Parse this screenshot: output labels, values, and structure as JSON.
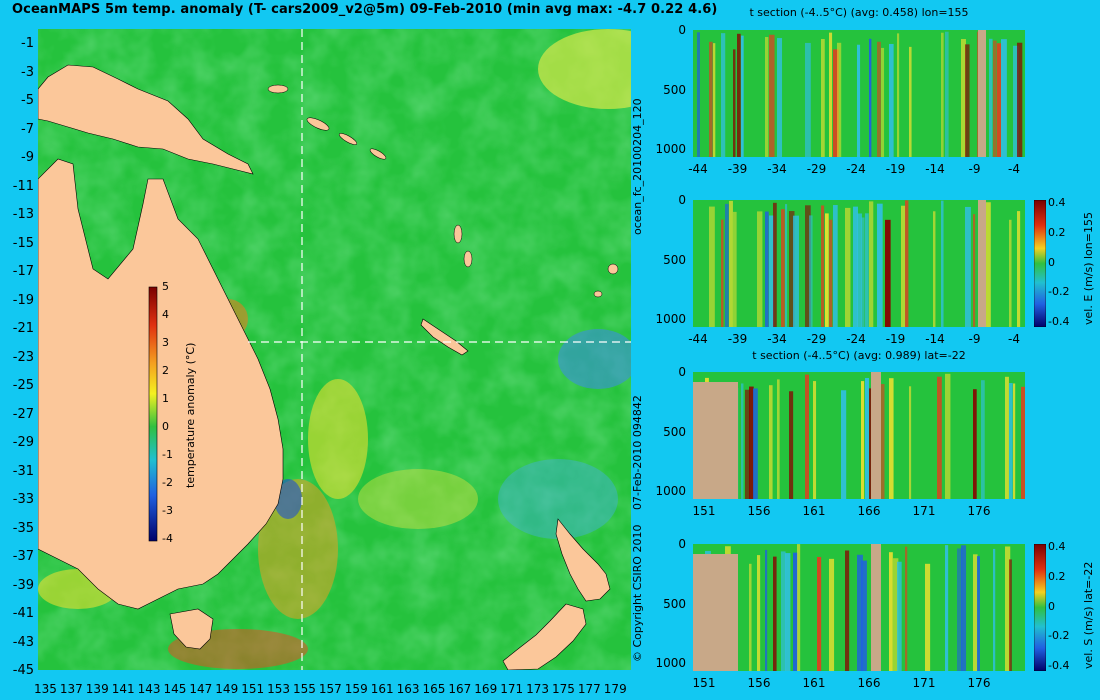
{
  "title": "OceanMAPS 5m temp. anomaly (T- cars2009_v2@5m) 09-Feb-2010 (min avg max: -4.7 0.22 4.6)",
  "map": {
    "y_ticks": [
      "-1",
      "-3",
      "-5",
      "-7",
      "-9",
      "-11",
      "-13",
      "-15",
      "-17",
      "-19",
      "-21",
      "-23",
      "-25",
      "-27",
      "-29",
      "-31",
      "-33",
      "-35",
      "-37",
      "-39",
      "-41",
      "-43",
      "-45"
    ],
    "x_ticks": [
      "135",
      "137",
      "139",
      "141",
      "143",
      "145",
      "147",
      "149",
      "151",
      "153",
      "155",
      "157",
      "159",
      "161",
      "163",
      "165",
      "167",
      "169",
      "171",
      "173",
      "175",
      "177",
      "179"
    ],
    "crosshair_lon": "155",
    "crosshair_lat": "-22",
    "colorbar": {
      "label": "temperature anomaly (°C)",
      "ticks": [
        "5",
        "4",
        "3",
        "2",
        "1",
        "0",
        "-1",
        "-2",
        "-3",
        "-4"
      ]
    },
    "ocean_color": "#25c23d",
    "land_color": "#fbc79a"
  },
  "side_labels": {
    "forecast_id": "ocean_fc_20100204_120",
    "run_time": "07-Feb-2010 094842",
    "copyright": "© Copyright CSIRO 2010"
  },
  "panels": [
    {
      "title": "t section (-4..5°C) (avg: 0.458) lon=155",
      "y_ticks": [
        "0",
        "500",
        "1000"
      ],
      "x_ticks": [
        "-44",
        "-39",
        "-34",
        "-29",
        "-24",
        "-19",
        "-14",
        "-9",
        "-4"
      ],
      "colorbar": null
    },
    {
      "title": "",
      "y_ticks": [
        "0",
        "500",
        "1000"
      ],
      "x_ticks": [
        "-44",
        "-39",
        "-34",
        "-29",
        "-24",
        "-19",
        "-14",
        "-9",
        "-4"
      ],
      "colorbar": {
        "label": "vel. E (m/s) lon=155",
        "ticks": [
          "0.4",
          "0.2",
          "0",
          "-0.2",
          "-0.4"
        ]
      }
    },
    {
      "title": "t section (-4..5°C) (avg: 0.989) lat=-22",
      "y_ticks": [
        "0",
        "500",
        "1000"
      ],
      "x_ticks": [
        "151",
        "156",
        "161",
        "166",
        "171",
        "176"
      ],
      "colorbar": null
    },
    {
      "title": "",
      "y_ticks": [
        "0",
        "500",
        "1000"
      ],
      "x_ticks": [
        "151",
        "156",
        "161",
        "166",
        "171",
        "176"
      ],
      "colorbar": {
        "label": "vel. S (m/s) lat=-22",
        "ticks": [
          "0.4",
          "0.2",
          "0",
          "-0.2",
          "-0.4"
        ]
      }
    }
  ]
}
